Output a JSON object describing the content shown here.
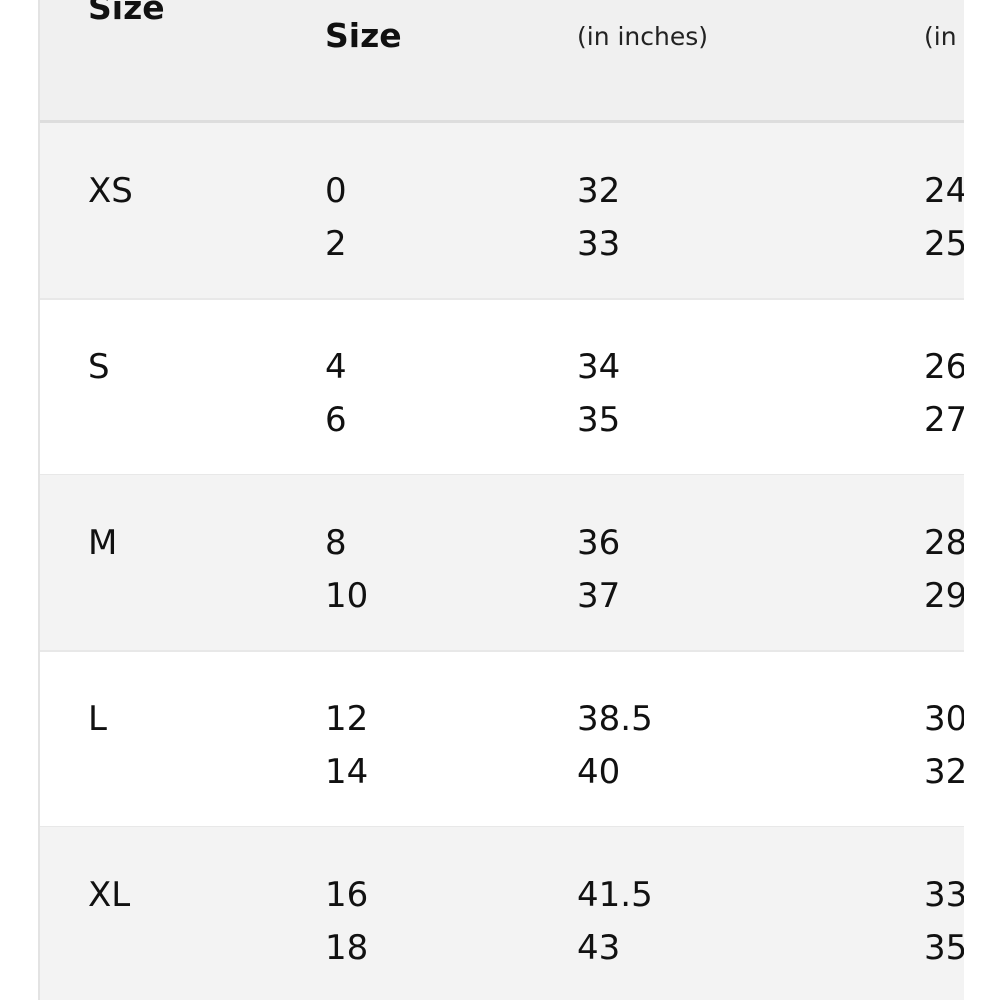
{
  "header": {
    "col1": "Size",
    "col2": "Size",
    "col3_unit": "(in inches)",
    "col4_unit": "(in inches)"
  },
  "rows": [
    {
      "size": "XS",
      "numeric": [
        "0",
        "2"
      ],
      "col3": [
        "32",
        "33"
      ],
      "col4": [
        "24",
        "25"
      ]
    },
    {
      "size": "S",
      "numeric": [
        "4",
        "6"
      ],
      "col3": [
        "34",
        "35"
      ],
      "col4": [
        "26",
        "27"
      ]
    },
    {
      "size": "M",
      "numeric": [
        "8",
        "10"
      ],
      "col3": [
        "36",
        "37"
      ],
      "col4": [
        "28",
        "29"
      ]
    },
    {
      "size": "L",
      "numeric": [
        "12",
        "14"
      ],
      "col3": [
        "38.5",
        "40"
      ],
      "col4": [
        "30",
        "32"
      ]
    },
    {
      "size": "XL",
      "numeric": [
        "16",
        "18"
      ],
      "col3": [
        "41.5",
        "43"
      ],
      "col4": [
        "33",
        "35"
      ]
    }
  ]
}
